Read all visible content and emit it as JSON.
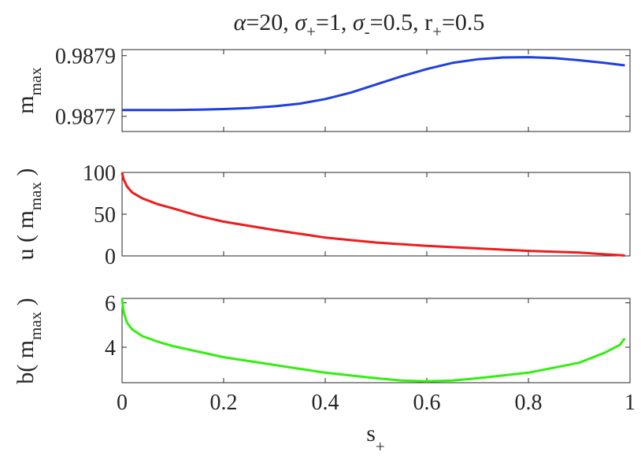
{
  "chart_data": [
    {
      "type": "line",
      "title": "α=20, σ+=1, σ-=0.5, r+=0.5",
      "title_parts": {
        "alpha": "α",
        "alpha_val": "=20, ",
        "sigma1": "σ",
        "sub1": "+",
        "sigma1_val": "=1, ",
        "sigma2": "σ",
        "sub2": "-",
        "sigma2_val": "=0.5, ",
        "r": "r",
        "sub3": "+",
        "r_val": "=0.5"
      },
      "ylabel": {
        "main": "m",
        "sub": "max"
      },
      "xlim": [
        0,
        1
      ],
      "ylim": [
        0.98765,
        0.98792
      ],
      "yticks": [
        0.9877,
        0.9879
      ],
      "ytick_labels": [
        "0.9877",
        "0.9879"
      ],
      "color": "#1f3fe0",
      "x": [
        0,
        0.05,
        0.1,
        0.15,
        0.2,
        0.25,
        0.3,
        0.35,
        0.4,
        0.45,
        0.5,
        0.55,
        0.6,
        0.65,
        0.7,
        0.75,
        0.8,
        0.85,
        0.9,
        0.95,
        0.99
      ],
      "y": [
        0.987721,
        0.987721,
        0.987721,
        0.987722,
        0.987724,
        0.987727,
        0.987733,
        0.987742,
        0.987757,
        0.987778,
        0.987805,
        0.987832,
        0.987856,
        0.987876,
        0.987888,
        0.987894,
        0.987895,
        0.987892,
        0.987885,
        0.987876,
        0.987868
      ]
    },
    {
      "type": "line",
      "ylabel": {
        "prefix": "u ( m",
        "sub": "max",
        "suffix": " )"
      },
      "xlim": [
        0,
        1
      ],
      "ylim": [
        0,
        100
      ],
      "yticks": [
        0,
        50,
        100
      ],
      "ytick_labels": [
        "0",
        "50",
        "100"
      ],
      "color": "#ee1c1c",
      "x": [
        0,
        0.003,
        0.01,
        0.02,
        0.04,
        0.07,
        0.1,
        0.15,
        0.2,
        0.3,
        0.4,
        0.5,
        0.6,
        0.7,
        0.8,
        0.9,
        0.95,
        0.99
      ],
      "y": [
        100,
        92,
        83,
        76,
        69,
        62,
        57,
        48,
        41,
        31,
        22,
        16,
        12,
        9,
        6,
        4,
        2,
        0.5
      ]
    },
    {
      "type": "line",
      "ylabel": {
        "prefix": "b( m",
        "sub": "max",
        "suffix": " )"
      },
      "xlabel": {
        "main": "s",
        "sub": "+"
      },
      "xlim": [
        0,
        1
      ],
      "ylim": [
        2.4,
        6.2
      ],
      "yticks": [
        4,
        6
      ],
      "ytick_labels": [
        "4",
        "6"
      ],
      "xticks": [
        0,
        0.2,
        0.4,
        0.6,
        0.8,
        1
      ],
      "xtick_labels": [
        "0",
        "0.2",
        "0.4",
        "0.6",
        "0.8",
        "1"
      ],
      "color": "#33ee11",
      "x": [
        0,
        0.003,
        0.01,
        0.02,
        0.04,
        0.07,
        0.1,
        0.15,
        0.2,
        0.3,
        0.4,
        0.5,
        0.55,
        0.6,
        0.65,
        0.7,
        0.8,
        0.9,
        0.95,
        0.98,
        0.99
      ],
      "y": [
        6.2,
        5.6,
        5.1,
        4.8,
        4.5,
        4.25,
        4.05,
        3.8,
        3.55,
        3.2,
        2.85,
        2.6,
        2.5,
        2.46,
        2.5,
        2.6,
        2.85,
        3.3,
        3.75,
        4.1,
        4.4
      ]
    }
  ]
}
